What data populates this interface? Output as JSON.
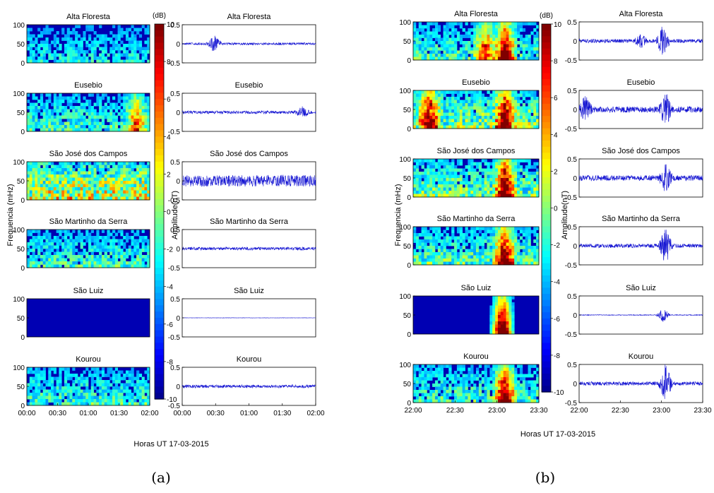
{
  "figure": {
    "panels": [
      {
        "caption": "(a)",
        "time_label": "Horas UT 17-03-2015",
        "x_ticks": [
          "00:00",
          "00:30",
          "01:00",
          "01:30",
          "02:00"
        ],
        "freq_axis_label": "Frequencia (mHz)",
        "amp_axis_label": "Amplitude(nT)",
        "colorbar_unit": "(dB)",
        "colorbar_ticks": [
          "10",
          "8",
          "6",
          "4",
          "2",
          "0",
          "-2",
          "-4",
          "-6",
          "-8",
          "-10"
        ],
        "freq_ticks": [
          "100",
          "50",
          "0"
        ],
        "amp_ticks": [
          "0.5",
          "0",
          "-0.5"
        ]
      },
      {
        "caption": "(b)",
        "time_label": "Horas UT 17-03-2015",
        "x_ticks": [
          "22:00",
          "22:30",
          "23:00",
          "23:30"
        ],
        "freq_axis_label": "Frequencia (mHz)",
        "amp_axis_label": "Amplitude(nT)",
        "colorbar_unit": "(dB)",
        "colorbar_ticks": [
          "10",
          "8",
          "6",
          "4",
          "2",
          "0",
          "-2",
          "-4",
          "-6",
          "-8",
          "-10"
        ],
        "freq_ticks": [
          "100",
          "50",
          "0"
        ],
        "amp_ticks": [
          "0.5",
          "0",
          "-0.5"
        ]
      }
    ],
    "stations": [
      "Alta Floresta",
      "Eusebio",
      "São José dos Campos",
      "São Martinho da Serra",
      "São Luiz",
      "Kourou"
    ],
    "colors": {
      "trace": "#1414d2",
      "axis": "#000000",
      "background": "#ffffff"
    }
  },
  "chart_data": [
    {
      "type": "heatmap",
      "panel": "(a)",
      "description_free": true,
      "x_range": [
        "00:00",
        "02:00"
      ],
      "y_range_mhz": [
        0,
        100
      ],
      "color_range_db": [
        -10,
        10
      ],
      "colormap": "jet",
      "rows": [
        {
          "station": "Alta Floresta",
          "intensity": 0.35,
          "bursts": []
        },
        {
          "station": "Eusebio",
          "intensity": 0.45,
          "bursts": [
            [
              0.88,
              0.6
            ]
          ]
        },
        {
          "station": "São José dos Campos",
          "intensity": 0.75,
          "bursts": []
        },
        {
          "station": "São Martinho da Serra",
          "intensity": 0.45,
          "bursts": []
        },
        {
          "station": "São Luiz",
          "intensity": 0.0,
          "bursts": []
        },
        {
          "station": "Kourou",
          "intensity": 0.45,
          "bursts": []
        }
      ]
    },
    {
      "type": "line",
      "panel": "(a)",
      "x_range": [
        "00:00",
        "02:00"
      ],
      "ylim": [
        -0.5,
        0.5
      ],
      "ylabel": "Amplitude(nT)",
      "series": [
        {
          "station": "Alta Floresta",
          "noise_nT": 0.03,
          "bursts": [
            [
              0.24,
              0.2
            ]
          ]
        },
        {
          "station": "Eusebio",
          "noise_nT": 0.04,
          "bursts": [
            [
              0.9,
              0.12
            ]
          ]
        },
        {
          "station": "São José dos Campos",
          "noise_nT": 0.15,
          "bursts": []
        },
        {
          "station": "São Martinho da Serra",
          "noise_nT": 0.04,
          "bursts": []
        },
        {
          "station": "São Luiz",
          "noise_nT": 0.004,
          "bursts": []
        },
        {
          "station": "Kourou",
          "noise_nT": 0.04,
          "bursts": []
        }
      ]
    },
    {
      "type": "heatmap",
      "panel": "(b)",
      "x_range": [
        "22:00",
        "23:30"
      ],
      "y_range_mhz": [
        0,
        100
      ],
      "color_range_db": [
        -10,
        10
      ],
      "colormap": "jet",
      "rows": [
        {
          "station": "Alta Floresta",
          "intensity": 0.45,
          "bursts": [
            [
              0.72,
              1.0
            ],
            [
              0.56,
              0.7
            ]
          ]
        },
        {
          "station": "Eusebio",
          "intensity": 0.6,
          "bursts": [
            [
              0.72,
              1.0
            ],
            [
              0.12,
              0.9
            ]
          ]
        },
        {
          "station": "São José dos Campos",
          "intensity": 0.55,
          "bursts": [
            [
              0.72,
              1.0
            ]
          ]
        },
        {
          "station": "São Martinho da Serra",
          "intensity": 0.5,
          "bursts": [
            [
              0.72,
              1.0
            ]
          ]
        },
        {
          "station": "São Luiz",
          "intensity": 0.02,
          "bursts": [
            [
              0.72,
              0.9
            ],
            [
              0.67,
              0.7
            ]
          ]
        },
        {
          "station": "Kourou",
          "intensity": 0.45,
          "bursts": [
            [
              0.72,
              1.0
            ]
          ]
        }
      ]
    },
    {
      "type": "line",
      "panel": "(b)",
      "x_range": [
        "22:00",
        "23:30"
      ],
      "ylim": [
        -0.5,
        0.5
      ],
      "ylabel": "Amplitude(nT)",
      "series": [
        {
          "station": "Alta Floresta",
          "noise_nT": 0.05,
          "bursts": [
            [
              0.68,
              0.4
            ],
            [
              0.5,
              0.15
            ]
          ]
        },
        {
          "station": "Eusebio",
          "noise_nT": 0.08,
          "bursts": [
            [
              0.7,
              0.45
            ],
            [
              0.05,
              0.3
            ]
          ]
        },
        {
          "station": "São José dos Campos",
          "noise_nT": 0.07,
          "bursts": [
            [
              0.7,
              0.35
            ]
          ]
        },
        {
          "station": "São Martinho da Serra",
          "noise_nT": 0.05,
          "bursts": [
            [
              0.7,
              0.45
            ]
          ]
        },
        {
          "station": "São Luiz",
          "noise_nT": 0.01,
          "bursts": [
            [
              0.68,
              0.18
            ]
          ]
        },
        {
          "station": "Kourou",
          "noise_nT": 0.05,
          "bursts": [
            [
              0.7,
              0.5
            ]
          ]
        }
      ]
    }
  ]
}
